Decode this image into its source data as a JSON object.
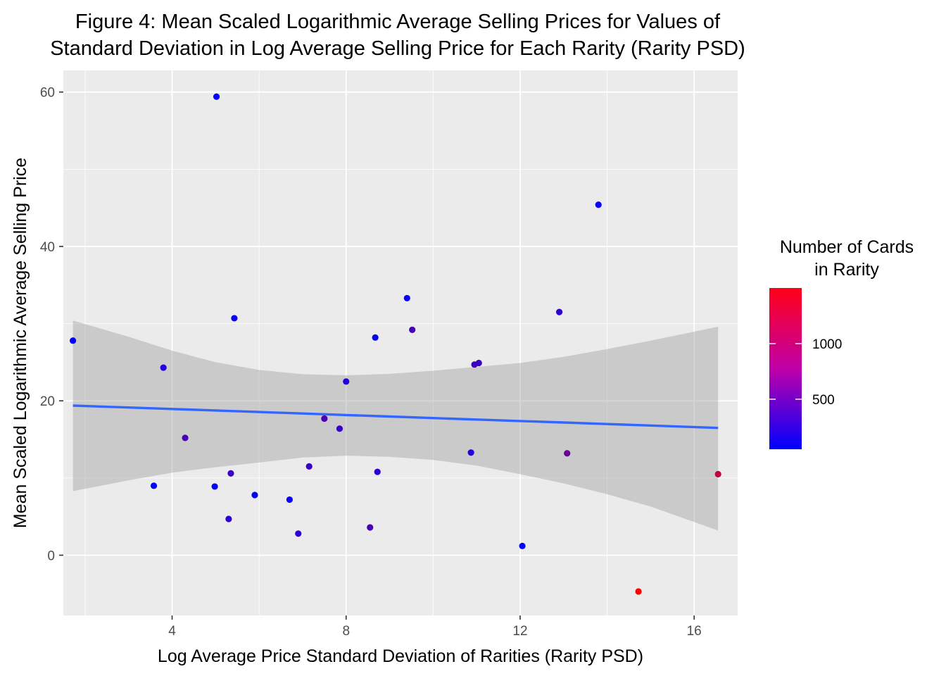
{
  "chart_data": {
    "type": "scatter",
    "title_lines": [
      "Figure 4: Mean Scaled Logarithmic Average Selling Prices for Values of",
      "Standard Deviation in Log Average Selling Price for Each Rarity (Rarity PSD)"
    ],
    "xlabel": "Log Average Price Standard Deviation of Rarities (Rarity PSD)",
    "ylabel": "Mean Scaled Logarithmic Average Selling Price",
    "xlim": [
      1.5,
      17.0
    ],
    "ylim": [
      -7.8,
      62.8
    ],
    "x_ticks": [
      4,
      8,
      12,
      16
    ],
    "y_ticks": [
      0,
      20,
      40,
      60
    ],
    "x_tick_labels": [
      "4",
      "8",
      "12",
      "16"
    ],
    "y_tick_labels": [
      "0",
      "20",
      "40",
      "60"
    ],
    "grid": true,
    "background": "#EBEBEB",
    "point_color_scale": {
      "low": "#0000FF",
      "high": "#FF0000",
      "min": 50,
      "max": 1500
    },
    "legend": {
      "title_lines": [
        "Number of Cards",
        "in Rarity"
      ],
      "position": "right",
      "ticks": [
        500,
        1000
      ],
      "tick_labels": [
        "500",
        "1000"
      ]
    },
    "points": [
      {
        "x": 1.72,
        "y": 27.8,
        "n": 80
      },
      {
        "x": 3.58,
        "y": 9.0,
        "n": 60
      },
      {
        "x": 3.8,
        "y": 24.3,
        "n": 250
      },
      {
        "x": 4.3,
        "y": 15.2,
        "n": 450
      },
      {
        "x": 4.98,
        "y": 8.9,
        "n": 90
      },
      {
        "x": 5.02,
        "y": 59.4,
        "n": 70
      },
      {
        "x": 5.3,
        "y": 4.7,
        "n": 300
      },
      {
        "x": 5.35,
        "y": 10.6,
        "n": 380
      },
      {
        "x": 5.43,
        "y": 30.7,
        "n": 100
      },
      {
        "x": 5.9,
        "y": 7.8,
        "n": 80
      },
      {
        "x": 6.7,
        "y": 7.2,
        "n": 100
      },
      {
        "x": 6.9,
        "y": 2.8,
        "n": 300
      },
      {
        "x": 7.15,
        "y": 11.5,
        "n": 350
      },
      {
        "x": 7.5,
        "y": 17.7,
        "n": 480
      },
      {
        "x": 7.85,
        "y": 16.4,
        "n": 380
      },
      {
        "x": 8.0,
        "y": 22.5,
        "n": 250
      },
      {
        "x": 8.55,
        "y": 3.6,
        "n": 450
      },
      {
        "x": 8.67,
        "y": 28.2,
        "n": 100
      },
      {
        "x": 8.72,
        "y": 10.8,
        "n": 300
      },
      {
        "x": 9.4,
        "y": 33.3,
        "n": 100
      },
      {
        "x": 9.52,
        "y": 29.2,
        "n": 450
      },
      {
        "x": 10.87,
        "y": 13.3,
        "n": 280
      },
      {
        "x": 10.95,
        "y": 24.7,
        "n": 420
      },
      {
        "x": 11.05,
        "y": 24.9,
        "n": 380
      },
      {
        "x": 12.05,
        "y": 1.2,
        "n": 80
      },
      {
        "x": 12.9,
        "y": 31.5,
        "n": 300
      },
      {
        "x": 13.08,
        "y": 13.2,
        "n": 650
      },
      {
        "x": 13.8,
        "y": 45.4,
        "n": 70
      },
      {
        "x": 14.72,
        "y": -4.7,
        "n": 1500
      },
      {
        "x": 16.55,
        "y": 10.5,
        "n": 1150
      }
    ],
    "smooth": {
      "line_color": "#3366FF",
      "ribbon_color": "#999999",
      "x": [
        1.72,
        3.0,
        4.0,
        5.0,
        6.0,
        7.0,
        8.0,
        9.0,
        10.0,
        11.0,
        12.0,
        13.0,
        14.0,
        15.0,
        16.55
      ],
      "fit": [
        19.38,
        19.14,
        18.94,
        18.75,
        18.55,
        18.36,
        18.16,
        17.97,
        17.77,
        17.58,
        17.38,
        17.19,
        16.99,
        16.8,
        16.49
      ],
      "upper": [
        30.4,
        28.3,
        26.5,
        25.0,
        24.0,
        23.45,
        23.3,
        23.5,
        23.9,
        24.4,
        24.9,
        25.7,
        26.7,
        27.8,
        29.6
      ],
      "lower": [
        8.3,
        9.7,
        10.7,
        11.4,
        12.0,
        12.65,
        12.9,
        12.75,
        12.35,
        11.6,
        10.5,
        9.3,
        7.9,
        6.3,
        3.2
      ]
    }
  }
}
